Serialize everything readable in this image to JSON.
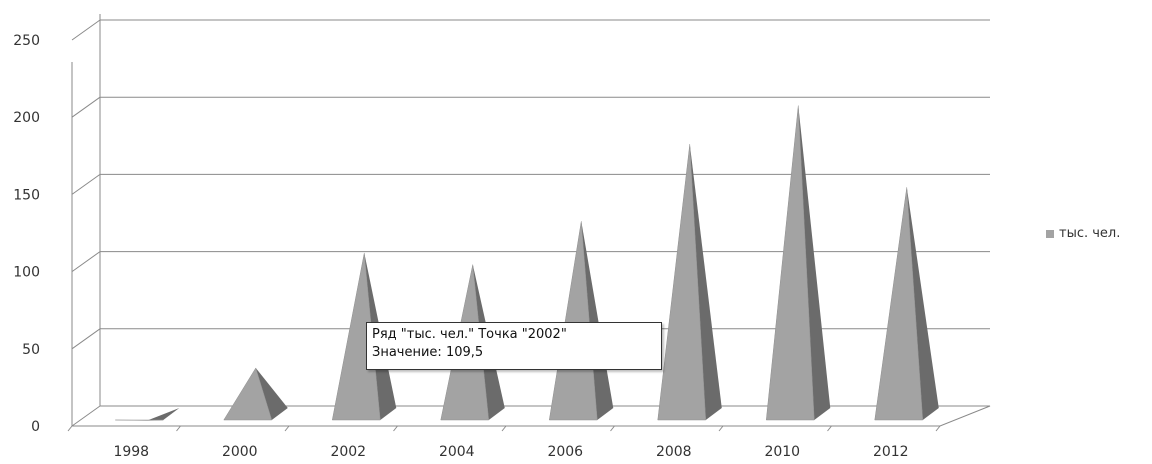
{
  "chart_data": {
    "type": "bar",
    "bar_shape": "pyramid",
    "three_d": true,
    "categories": [
      "1998",
      "2000",
      "2002",
      "2004",
      "2006",
      "2008",
      "2010",
      "2012"
    ],
    "series": [
      {
        "name": "тыс. чел.",
        "values": [
          1,
          35,
          109.5,
          102,
          130,
          180,
          205,
          152
        ]
      }
    ],
    "y_ticks": [
      "0",
      "50",
      "100",
      "150",
      "200",
      "250"
    ],
    "ylim": [
      0,
      250
    ],
    "grid": true,
    "legend_position": "right"
  },
  "tooltip": {
    "line1": "Ряд \"тыс. чел.\" Точка \"2002\"",
    "line2": "Значение: 109,5"
  },
  "colors": {
    "bar_front": "#a3a3a3",
    "bar_side": "#6b6b6b",
    "gridline": "#8a8a8a",
    "text": "#333333"
  }
}
